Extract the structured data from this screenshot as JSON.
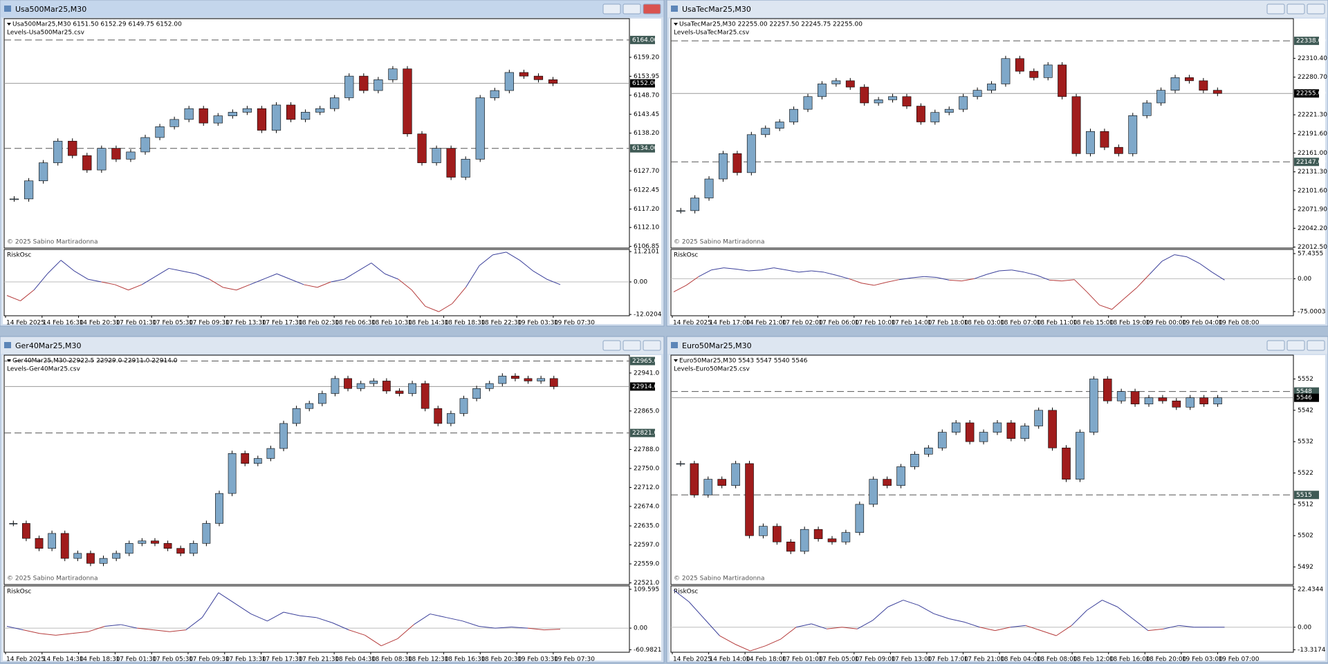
{
  "windows": [
    {
      "title": "Usa500Mar25,M30",
      "header": "Usa500Mar25,M30  6151.50 6152.29 6149.75 6152.00",
      "levels_file": "Levels-Usa500Mar25.csv",
      "copyright": "© 2025 Sabino Martiradonna",
      "price": {
        "type": "candlestick",
        "ylim": [
          6106.4,
          6169.9
        ],
        "yticks": [
          {
            "value": 6159.2,
            "label": "6159.20"
          },
          {
            "value": 6153.95,
            "label": "6153.95"
          },
          {
            "value": 6148.7,
            "label": "6148.70"
          },
          {
            "value": 6143.45,
            "label": "6143.45"
          },
          {
            "value": 6138.2,
            "label": "6138.20"
          },
          {
            "value": 6127.7,
            "label": "6127.70"
          },
          {
            "value": 6122.45,
            "label": "6122.45"
          },
          {
            "value": 6117.2,
            "label": "6117.20"
          },
          {
            "value": 6112.1,
            "label": "6112.10"
          },
          {
            "value": 6106.85,
            "label": "6106.85"
          }
        ],
        "levels": [
          {
            "value": 6164,
            "label": "6164.00"
          },
          {
            "value": 6134,
            "label": "6134.00"
          }
        ],
        "current": {
          "value": 6152,
          "label": "6152.00"
        },
        "close": [
          6120,
          6125,
          6130,
          6136,
          6132,
          6128,
          6134,
          6131,
          6133,
          6137,
          6140,
          6142,
          6145,
          6141,
          6143,
          6144,
          6145,
          6139,
          6146,
          6142,
          6144,
          6145,
          6148,
          6154,
          6150,
          6153,
          6156,
          6138,
          6130,
          6134,
          6126,
          6131,
          6148,
          6150,
          6155,
          6154,
          6153,
          6152
        ]
      },
      "oscillator": {
        "type": "line",
        "name": "RiskOsc",
        "ylim": [
          -12.5,
          12.0
        ],
        "yticks": [
          11.2101,
          {
            "value": 0,
            "label": "0.00"
          },
          -12.0204
        ],
        "values": [
          -5,
          -7,
          -3,
          3,
          8,
          4,
          1,
          0,
          -1,
          -3,
          -1,
          2,
          5,
          4,
          3,
          1,
          -2,
          -3,
          -1,
          1,
          3,
          1,
          -1,
          -2,
          0,
          1,
          4,
          7,
          3,
          1,
          -3,
          -9,
          -11,
          -8,
          -2,
          6,
          10,
          11,
          8,
          4,
          1,
          -1
        ]
      },
      "time_labels": [
        "14 Feb 2025",
        "14 Feb 16:30",
        "14 Feb 20:30",
        "17 Feb 01:30",
        "17 Feb 05:30",
        "17 Feb 09:30",
        "17 Feb 13:30",
        "17 Feb 17:30",
        "18 Feb 02:30",
        "18 Feb 06:30",
        "18 Feb 10:30",
        "18 Feb 14:30",
        "18 Feb 18:30",
        "18 Feb 22:30",
        "19 Feb 03:30",
        "19 Feb 07:30"
      ]
    },
    {
      "title": "UsaTecMar25,M30",
      "header": "UsaTecMar25,M30  22255.00 22257.50 22245.75 22255.00",
      "levels_file": "Levels-UsaTecMar25.csv",
      "copyright": "© 2025 Sabino Martiradonna",
      "price": {
        "type": "candlestick",
        "ylim": [
          22011,
          22373
        ],
        "yticks": [
          {
            "value": 22310.4,
            "label": "22310.40"
          },
          {
            "value": 22280.7,
            "label": "22280.70"
          },
          {
            "value": 22221.3,
            "label": "22221.30"
          },
          {
            "value": 22191.6,
            "label": "22191.60"
          },
          {
            "value": 22161,
            "label": "22161.00"
          },
          {
            "value": 22131.3,
            "label": "22131.30"
          },
          {
            "value": 22101.6,
            "label": "22101.60"
          },
          {
            "value": 22071.9,
            "label": "22071.90"
          },
          {
            "value": 22042.2,
            "label": "22042.20"
          },
          {
            "value": 22012.5,
            "label": "22012.50"
          }
        ],
        "levels": [
          {
            "value": 22338,
            "label": "22338.00"
          },
          {
            "value": 22147,
            "label": "22147.00"
          }
        ],
        "current": {
          "value": 22255,
          "label": "22255.00"
        },
        "close": [
          22070,
          22090,
          22120,
          22160,
          22130,
          22190,
          22200,
          22210,
          22230,
          22250,
          22270,
          22275,
          22265,
          22240,
          22245,
          22250,
          22235,
          22210,
          22225,
          22230,
          22250,
          22260,
          22270,
          22310,
          22290,
          22280,
          22300,
          22250,
          22160,
          22195,
          22170,
          22160,
          22220,
          22240,
          22260,
          22280,
          22275,
          22260,
          22255
        ]
      },
      "oscillator": {
        "type": "line",
        "name": "RiskOsc",
        "ylim": [
          -84.6,
          67.0
        ],
        "yticks": [
          57.4355,
          {
            "value": 0,
            "label": "0.00"
          },
          -75.0003
        ],
        "values": [
          -30,
          -15,
          5,
          20,
          25,
          22,
          18,
          20,
          25,
          20,
          15,
          18,
          15,
          8,
          0,
          -10,
          -15,
          -8,
          -2,
          2,
          5,
          3,
          -3,
          -5,
          0,
          10,
          18,
          20,
          15,
          8,
          -3,
          -5,
          -2,
          -30,
          -60,
          -70,
          -45,
          -20,
          10,
          40,
          55,
          50,
          35,
          15,
          -3
        ]
      },
      "time_labels": [
        "14 Feb 2025",
        "14 Feb 17:00",
        "14 Feb 21:00",
        "17 Feb 02:00",
        "17 Feb 06:00",
        "17 Feb 10:00",
        "17 Feb 14:00",
        "17 Feb 18:00",
        "18 Feb 03:00",
        "18 Feb 07:00",
        "18 Feb 11:00",
        "18 Feb 15:00",
        "18 Feb 19:00",
        "19 Feb 00:00",
        "19 Feb 04:00",
        "19 Feb 08:00"
      ]
    },
    {
      "title": "Ger40Mar25,M30",
      "header": "Ger40Mar25,M30  22922.5 22929.0 22911.0 22914.0",
      "levels_file": "Levels-Ger40Mar25.csv",
      "copyright": "© 2025 Sabino Martiradonna",
      "price": {
        "type": "candlestick",
        "ylim": [
          22517.6,
          22976.8
        ],
        "yticks": [
          {
            "value": 22941,
            "label": "22941.0"
          },
          {
            "value": 22865,
            "label": "22865.0"
          },
          {
            "value": 22788,
            "label": "22788.0"
          },
          {
            "value": 22750,
            "label": "22750.0"
          },
          {
            "value": 22712,
            "label": "22712.0"
          },
          {
            "value": 22674,
            "label": "22674.0"
          },
          {
            "value": 22635,
            "label": "22635.0"
          },
          {
            "value": 22597,
            "label": "22597.0"
          },
          {
            "value": 22559,
            "label": "22559.0"
          },
          {
            "value": 22521,
            "label": "22521.0"
          }
        ],
        "levels": [
          {
            "value": 22965,
            "label": "22965.0"
          },
          {
            "value": 22821,
            "label": "22821.0"
          }
        ],
        "current": {
          "value": 22914,
          "label": "22914.0"
        },
        "close": [
          22640,
          22610,
          22590,
          22620,
          22570,
          22580,
          22560,
          22570,
          22580,
          22600,
          22605,
          22600,
          22590,
          22580,
          22600,
          22640,
          22700,
          22780,
          22760,
          22770,
          22790,
          22840,
          22870,
          22880,
          22900,
          22930,
          22910,
          22920,
          22925,
          22905,
          22900,
          22920,
          22870,
          22840,
          22860,
          22890,
          22910,
          22920,
          22935,
          22930,
          22925,
          22930,
          22914
        ]
      },
      "oscillator": {
        "type": "line",
        "name": "RiskOsc",
        "ylim": [
          -68.1,
          119.1
        ],
        "yticks": [
          109.595,
          {
            "value": 0,
            "label": "0.00"
          },
          -60.9821
        ],
        "values": [
          5,
          -5,
          -15,
          -20,
          -15,
          -10,
          5,
          10,
          0,
          -5,
          -10,
          -5,
          30,
          100,
          70,
          40,
          20,
          45,
          35,
          30,
          15,
          -5,
          -20,
          -50,
          -30,
          10,
          40,
          30,
          20,
          5,
          0,
          3,
          0,
          -5,
          -3
        ]
      },
      "time_labels": [
        "14 Feb 2025",
        "14 Feb 14:30",
        "14 Feb 18:30",
        "17 Feb 01:30",
        "17 Feb 05:30",
        "17 Feb 09:30",
        "17 Feb 13:30",
        "17 Feb 17:30",
        "17 Feb 21:30",
        "18 Feb 04:30",
        "18 Feb 08:30",
        "18 Feb 12:30",
        "18 Feb 16:30",
        "18 Feb 20:30",
        "19 Feb 03:30",
        "19 Feb 07:30"
      ]
    },
    {
      "title": "Euro50Mar25,M30",
      "header": "Euro50Mar25,M30  5543 5547 5540 5546",
      "levels_file": "Levels-Euro50Mar25.csv",
      "copyright": "© 2025 Sabino Martiradonna",
      "price": {
        "type": "candlestick",
        "ylim": [
          5486.4,
          5559.6
        ],
        "yticks": [
          5552,
          5542,
          5532,
          5522,
          5512,
          5502,
          5492
        ],
        "levels": [
          5548,
          5515
        ],
        "current": 5546,
        "close": [
          5525,
          5515,
          5520,
          5518,
          5525,
          5502,
          5505,
          5500,
          5497,
          5504,
          5501,
          5500,
          5503,
          5512,
          5520,
          5518,
          5524,
          5528,
          5530,
          5535,
          5538,
          5532,
          5535,
          5538,
          5533,
          5537,
          5542,
          5530,
          5520,
          5535,
          5552,
          5545,
          5548,
          5544,
          5546,
          5545,
          5543,
          5546,
          5544,
          5546
        ]
      },
      "oscillator": {
        "type": "line",
        "name": "RiskOsc",
        "ylim": [
          -14.8,
          24.4
        ],
        "yticks": [
          22.4344,
          {
            "value": 0,
            "label": "0.00"
          },
          -13.3174
        ],
        "values": [
          22,
          15,
          5,
          -5,
          -10,
          -14,
          -11,
          -7,
          0,
          2,
          -1,
          0,
          -1,
          4,
          12,
          16,
          13,
          8,
          5,
          3,
          0,
          -2,
          0,
          1,
          -2,
          -5,
          1,
          10,
          16,
          12,
          5,
          -2,
          -1,
          1,
          0,
          0,
          0
        ]
      },
      "time_labels": [
        "14 Feb 2025",
        "14 Feb 14:00",
        "14 Feb 18:00",
        "17 Feb 01:00",
        "17 Feb 05:00",
        "17 Feb 09:00",
        "17 Feb 13:00",
        "17 Feb 17:00",
        "17 Feb 21:00",
        "18 Feb 04:00",
        "18 Feb 08:00",
        "18 Feb 12:00",
        "18 Feb 16:00",
        "18 Feb 20:00",
        "19 Feb 03:00",
        "19 Feb 07:00"
      ]
    }
  ]
}
